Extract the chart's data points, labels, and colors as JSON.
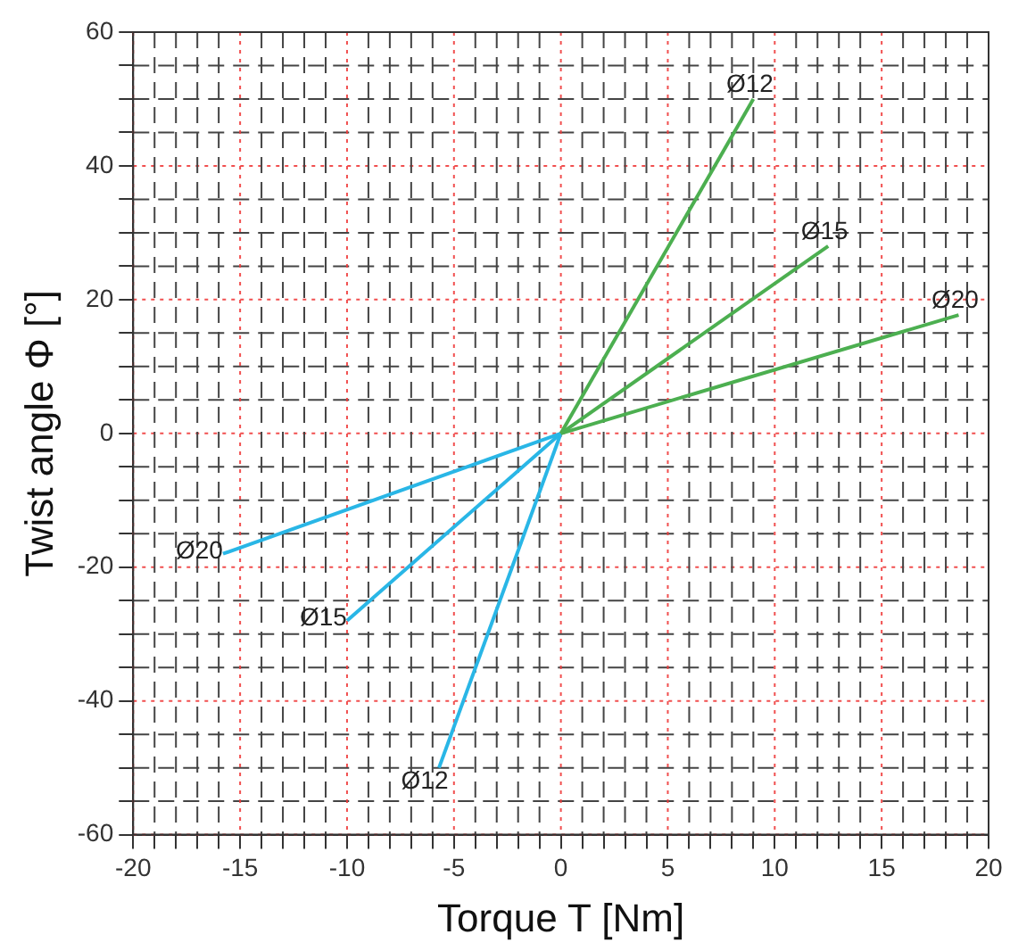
{
  "chart_data": {
    "type": "line",
    "xlabel": "Torque T [Nm]",
    "ylabel": "Twist angle Φ [°]",
    "xlim": [
      -20,
      20
    ],
    "ylim": [
      -60,
      60
    ],
    "xticks": [
      -20,
      {
        "value": -19,
        "label": null
      },
      {
        "value": -18,
        "label": null
      },
      {
        "value": -17,
        "label": null
      },
      {
        "value": -16,
        "label": null
      },
      -15,
      {
        "value": -14,
        "label": null
      },
      {
        "value": -13,
        "label": null
      },
      {
        "value": -12,
        "label": null
      },
      {
        "value": -11,
        "label": null
      },
      -10,
      {
        "value": -9,
        "label": null
      },
      {
        "value": -8,
        "label": null
      },
      {
        "value": -7,
        "label": null
      },
      {
        "value": -6,
        "label": null
      },
      -5,
      {
        "value": -4,
        "label": null
      },
      {
        "value": -3,
        "label": null
      },
      {
        "value": -2,
        "label": null
      },
      {
        "value": -1,
        "label": null
      },
      0,
      {
        "value": 1,
        "label": null
      },
      {
        "value": 2,
        "label": null
      },
      {
        "value": 3,
        "label": null
      },
      {
        "value": 4,
        "label": null
      },
      5,
      {
        "value": 6,
        "label": null
      },
      {
        "value": 7,
        "label": null
      },
      {
        "value": 8,
        "label": null
      },
      {
        "value": 9,
        "label": null
      },
      10,
      {
        "value": 11,
        "label": null
      },
      {
        "value": 12,
        "label": null
      },
      {
        "value": 13,
        "label": null
      },
      {
        "value": 14,
        "label": null
      },
      15,
      {
        "value": 16,
        "label": null
      },
      {
        "value": 17,
        "label": null
      },
      {
        "value": 18,
        "label": null
      },
      {
        "value": 19,
        "label": null
      },
      20
    ],
    "yticks": [
      -60,
      {
        "value": -55,
        "label": null
      },
      {
        "value": -50,
        "label": null
      },
      {
        "value": -45,
        "label": null
      },
      -40,
      {
        "value": -35,
        "label": null
      },
      {
        "value": -30,
        "label": null
      },
      {
        "value": -25,
        "label": null
      },
      -20,
      {
        "value": -15,
        "label": null
      },
      {
        "value": -10,
        "label": null
      },
      {
        "value": -5,
        "label": null
      },
      0,
      {
        "value": 5,
        "label": null
      },
      {
        "value": 10,
        "label": null
      },
      {
        "value": 15,
        "label": null
      },
      20,
      {
        "value": 25,
        "label": null
      },
      {
        "value": 30,
        "label": null
      },
      {
        "value": 35,
        "label": null
      },
      40,
      {
        "value": 45,
        "label": null
      },
      {
        "value": 50,
        "label": null
      },
      {
        "value": 55,
        "label": null
      },
      60
    ],
    "grid": true,
    "legend": false,
    "marker": "none",
    "series": [
      {
        "name": "Ø12",
        "color": "#4caf50",
        "x": [
          0,
          9
        ],
        "values": [
          0,
          50
        ]
      },
      {
        "name": "Ø15",
        "color": "#4caf50",
        "x": [
          0,
          12.5
        ],
        "values": [
          0,
          28
        ]
      },
      {
        "name": "Ø20",
        "color": "#4caf50",
        "x": [
          0,
          18.6
        ],
        "values": [
          0,
          17.7
        ]
      },
      {
        "name": "Ø20",
        "color": "#29b6e6",
        "x": [
          0,
          -15.8
        ],
        "values": [
          0,
          -18
        ]
      },
      {
        "name": "Ø15",
        "color": "#29b6e6",
        "x": [
          0,
          -10
        ],
        "values": [
          0,
          -28
        ]
      },
      {
        "name": "Ø12",
        "color": "#29b6e6",
        "x": [
          0,
          -5.7
        ],
        "values": [
          0,
          -50
        ]
      }
    ]
  }
}
